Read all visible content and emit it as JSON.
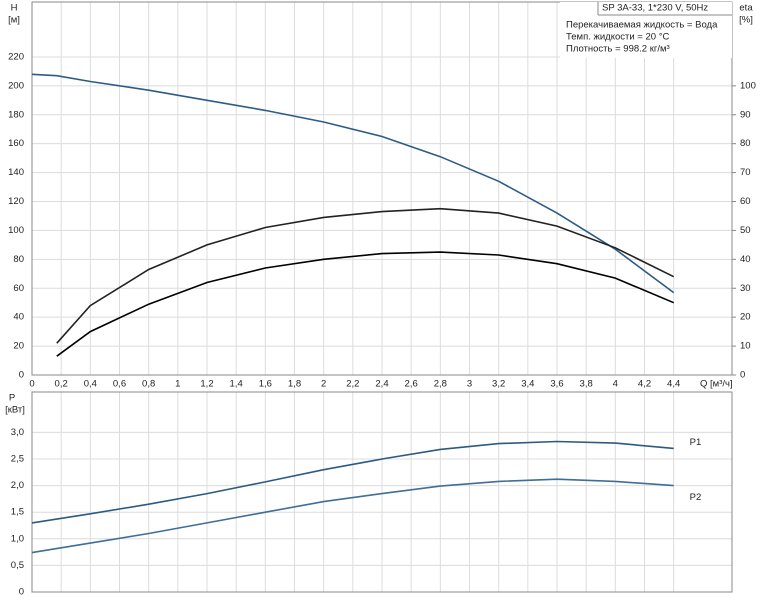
{
  "chart_data": [
    {
      "type": "line",
      "annotations": [
        "SP 3A-33, 1*230 V, 50Hz",
        "Перекачиваемая жидкость = Вода",
        "Темп. жидкости = 20 °C",
        "Плотность = 998.2 кг/м³"
      ],
      "y_label": [
        "H",
        "[м]"
      ],
      "y2_label": [
        "eta",
        "[%]"
      ],
      "x_label": "Q [м³/ч]",
      "x": [
        0,
        0.17,
        0.4,
        0.8,
        1.2,
        1.6,
        2.0,
        2.4,
        2.8,
        3.2,
        3.6,
        4.0,
        4.4
      ],
      "series": [
        {
          "color": "#2c5c86",
          "values": [
            208,
            207,
            203,
            197,
            190,
            183,
            175,
            165,
            151,
            134,
            112,
            87,
            57
          ]
        },
        {
          "color": "#222222",
          "axis": "y2",
          "values": [
            null,
            11,
            24,
            36.5,
            45,
            51,
            54.5,
            56.5,
            57.5,
            56,
            51.5,
            44,
            34
          ]
        },
        {
          "color": "#000000",
          "axis": "y2",
          "values": [
            null,
            6.5,
            15,
            24.5,
            32,
            37,
            40,
            42,
            42.5,
            41.5,
            38.5,
            33.5,
            25
          ]
        }
      ],
      "xlim": [
        0,
        4.8
      ],
      "xticks": [
        0,
        {
          "value": 0.2,
          "label": "0,2"
        },
        {
          "value": 0.4,
          "label": "0,4"
        },
        {
          "value": 0.6,
          "label": "0,6"
        },
        {
          "value": 0.8,
          "label": "0,8"
        },
        1,
        {
          "value": 1.2,
          "label": "1,2"
        },
        {
          "value": 1.4,
          "label": "1,4"
        },
        {
          "value": 1.6,
          "label": "1,6"
        },
        {
          "value": 1.8,
          "label": "1,8"
        },
        2,
        {
          "value": 2.2,
          "label": "2,2"
        },
        {
          "value": 2.4,
          "label": "2,4"
        },
        {
          "value": 2.6,
          "label": "2,6"
        },
        {
          "value": 2.8,
          "label": "2,8"
        },
        3,
        {
          "value": 3.2,
          "label": "3,2"
        },
        {
          "value": 3.4,
          "label": "3,4"
        },
        {
          "value": 3.6,
          "label": "3,6"
        },
        {
          "value": 3.8,
          "label": "3,8"
        },
        4,
        {
          "value": 4.2,
          "label": "4,2"
        },
        {
          "value": 4.4,
          "label": "4,4"
        }
      ],
      "ylim": [
        0,
        258
      ],
      "yticks": [
        0,
        20,
        40,
        60,
        80,
        100,
        120,
        140,
        160,
        180,
        200,
        220
      ],
      "y2lim": [
        0,
        129
      ],
      "y2ticks": [
        0,
        10,
        20,
        30,
        40,
        50,
        60,
        70,
        80,
        90,
        100
      ],
      "grid": true
    },
    {
      "type": "line",
      "y_label": [
        "P",
        "[кВт]"
      ],
      "x": [
        0,
        0.4,
        0.8,
        1.2,
        1.6,
        2.0,
        2.4,
        2.8,
        3.2,
        3.6,
        4.0,
        4.4
      ],
      "series": [
        {
          "name": "P1",
          "color": "#2c5a80",
          "values": [
            1.3,
            1.47,
            1.65,
            1.85,
            2.07,
            2.3,
            2.5,
            2.68,
            2.79,
            2.83,
            2.8,
            2.7
          ]
        },
        {
          "name": "P2",
          "color": "#3f6e96",
          "values": [
            0.74,
            0.92,
            1.1,
            1.3,
            1.5,
            1.7,
            1.85,
            1.99,
            2.08,
            2.12,
            2.08,
            2.0
          ]
        }
      ],
      "xlim": [
        0,
        4.8
      ],
      "ylim": [
        0,
        3.76
      ],
      "yticks": [
        0,
        {
          "value": 0.5,
          "label": "0,5"
        },
        {
          "value": 1.0,
          "label": "1,0"
        },
        {
          "value": 1.5,
          "label": "1,5"
        },
        {
          "value": 2.0,
          "label": "2,0"
        },
        {
          "value": 2.5,
          "label": "2,5"
        },
        {
          "value": 3.0,
          "label": "3,0"
        }
      ],
      "grid": true
    }
  ]
}
